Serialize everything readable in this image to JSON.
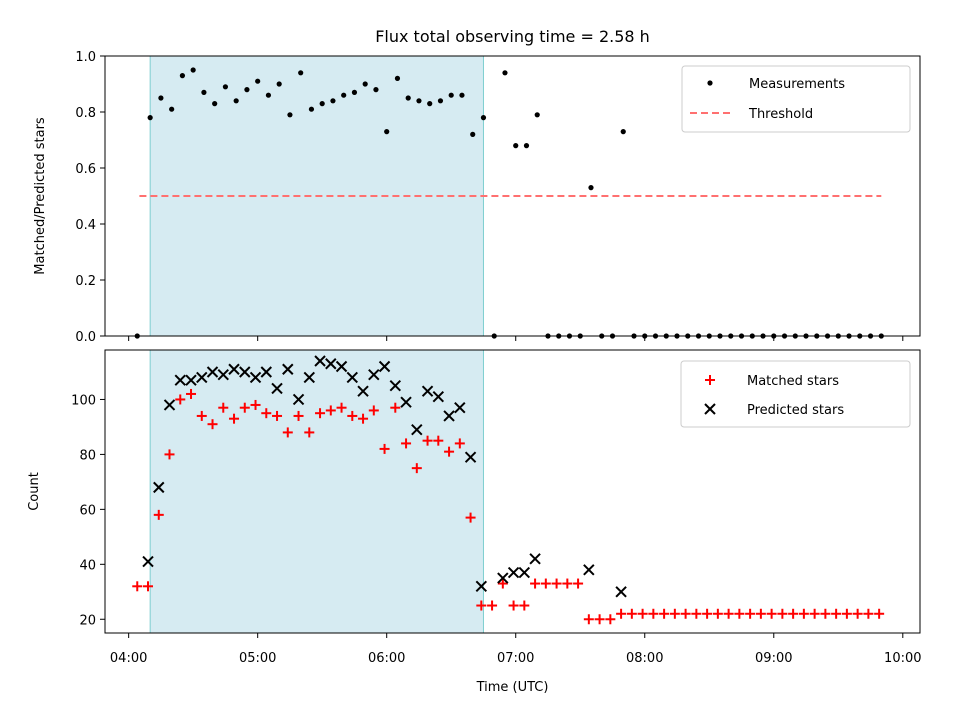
{
  "chart_data": [
    {
      "type": "scatter",
      "title": "Flux total observing time = 2.58 h",
      "xlabel": "",
      "ylabel": "Matched/Predicted stars",
      "xlim": [
        "03:49",
        "10:08"
      ],
      "ylim": [
        0,
        1
      ],
      "yticks": [
        "0.0",
        "0.2",
        "0.4",
        "0.6",
        "0.8",
        "1.0"
      ],
      "shaded_interval": [
        "04:10",
        "06:45"
      ],
      "threshold": {
        "value": 0.5,
        "from": "04:05",
        "to": "09:50",
        "color": "#ff7070"
      },
      "legend": {
        "position": "top-right",
        "entries": [
          "Measurements",
          "Threshold"
        ]
      },
      "series": [
        {
          "name": "Measurements",
          "marker": "dot",
          "color": "#000000",
          "x": [
            "04:04",
            "04:10",
            "04:15",
            "04:20",
            "04:25",
            "04:30",
            "04:35",
            "04:40",
            "04:45",
            "04:50",
            "04:55",
            "05:00",
            "05:05",
            "05:10",
            "05:15",
            "05:20",
            "05:25",
            "05:30",
            "05:35",
            "05:40",
            "05:45",
            "05:50",
            "05:55",
            "06:00",
            "06:05",
            "06:10",
            "06:15",
            "06:20",
            "06:25",
            "06:30",
            "06:35",
            "06:40",
            "06:45",
            "06:50",
            "06:55",
            "07:00",
            "07:05",
            "07:10",
            "07:15",
            "07:20",
            "07:25",
            "07:30",
            "07:35",
            "07:40",
            "07:45",
            "07:50",
            "07:55",
            "08:00",
            "08:05",
            "08:10",
            "08:15",
            "08:20",
            "08:25",
            "08:30",
            "08:35",
            "08:40",
            "08:45",
            "08:50",
            "08:55",
            "09:00",
            "09:05",
            "09:10",
            "09:15",
            "09:20",
            "09:25",
            "09:30",
            "09:35",
            "09:40",
            "09:45",
            "09:50"
          ],
          "values": [
            0.0,
            0.78,
            0.85,
            0.81,
            0.93,
            0.95,
            0.87,
            0.83,
            0.89,
            0.84,
            0.88,
            0.91,
            0.86,
            0.9,
            0.79,
            0.94,
            0.81,
            0.83,
            0.84,
            0.86,
            0.87,
            0.9,
            0.88,
            0.73,
            0.92,
            0.85,
            0.84,
            0.83,
            0.84,
            0.86,
            0.86,
            0.72,
            0.78,
            0.0,
            0.94,
            0.68,
            0.68,
            0.79,
            0.0,
            0.0,
            0.0,
            0.0,
            0.53,
            0.0,
            0.0,
            0.73,
            0.0,
            0.0,
            0.0,
            0.0,
            0.0,
            0.0,
            0.0,
            0.0,
            0.0,
            0.0,
            0.0,
            0.0,
            0.0,
            0.0,
            0.0,
            0.0,
            0.0,
            0.0,
            0.0,
            0.0,
            0.0,
            0.0,
            0.0,
            0.0
          ]
        }
      ]
    },
    {
      "type": "scatter",
      "title": "",
      "xlabel": "Time (UTC)",
      "ylabel": "Count",
      "xlim": [
        "03:49",
        "10:08"
      ],
      "ylim": [
        15,
        118
      ],
      "yticks": [
        "20",
        "40",
        "60",
        "80",
        "100"
      ],
      "xticks": [
        "04:00",
        "05:00",
        "06:00",
        "07:00",
        "08:00",
        "09:00",
        "10:00"
      ],
      "shaded_interval": [
        "04:10",
        "06:45"
      ],
      "legend": {
        "position": "top-right",
        "entries": [
          "Matched stars",
          "Predicted stars"
        ]
      },
      "series": [
        {
          "name": "Matched stars",
          "marker": "plus",
          "color": "#ff0000",
          "x": [
            "04:04",
            "04:09",
            "04:14",
            "04:19",
            "04:24",
            "04:29",
            "04:34",
            "04:39",
            "04:44",
            "04:49",
            "04:54",
            "04:59",
            "05:04",
            "05:09",
            "05:14",
            "05:19",
            "05:24",
            "05:29",
            "05:34",
            "05:39",
            "05:44",
            "05:49",
            "05:54",
            "05:59",
            "06:04",
            "06:09",
            "06:14",
            "06:19",
            "06:24",
            "06:29",
            "06:34",
            "06:39",
            "06:44",
            "06:49",
            "06:54",
            "06:59",
            "07:04",
            "07:09",
            "07:14",
            "07:19",
            "07:24",
            "07:29",
            "07:34",
            "07:39",
            "07:44",
            "07:49",
            "07:54",
            "07:59",
            "08:04",
            "08:09",
            "08:14",
            "08:19",
            "08:24",
            "08:29",
            "08:34",
            "08:39",
            "08:44",
            "08:49",
            "08:54",
            "08:59",
            "09:04",
            "09:09",
            "09:14",
            "09:19",
            "09:24",
            "09:29",
            "09:34",
            "09:39",
            "09:44",
            "09:49"
          ],
          "values": [
            32,
            32,
            58,
            80,
            100,
            102,
            94,
            91,
            97,
            93,
            97,
            98,
            95,
            94,
            88,
            94,
            88,
            95,
            96,
            97,
            94,
            93,
            96,
            82,
            97,
            84,
            75,
            85,
            85,
            81,
            84,
            57,
            25,
            25,
            33,
            25,
            25,
            33,
            33,
            33,
            33,
            33,
            20,
            20,
            20,
            22,
            22,
            22,
            22,
            22,
            22,
            22,
            22,
            22,
            22,
            22,
            22,
            22,
            22,
            22,
            22,
            22,
            22,
            22,
            22,
            22,
            22,
            22,
            22,
            22
          ]
        },
        {
          "name": "Predicted stars",
          "marker": "x",
          "color": "#000000",
          "x": [
            "04:09",
            "04:14",
            "04:19",
            "04:24",
            "04:29",
            "04:34",
            "04:39",
            "04:44",
            "04:49",
            "04:54",
            "04:59",
            "05:04",
            "05:09",
            "05:14",
            "05:19",
            "05:24",
            "05:29",
            "05:34",
            "05:39",
            "05:44",
            "05:49",
            "05:54",
            "05:59",
            "06:04",
            "06:09",
            "06:14",
            "06:19",
            "06:24",
            "06:29",
            "06:34",
            "06:39",
            "06:44",
            "06:54",
            "06:59",
            "07:04",
            "07:09",
            "07:34",
            "07:49"
          ],
          "values": [
            41,
            68,
            98,
            107,
            107,
            108,
            110,
            109,
            111,
            110,
            108,
            110,
            104,
            111,
            100,
            108,
            114,
            113,
            112,
            108,
            103,
            109,
            112,
            105,
            99,
            89,
            103,
            101,
            94,
            97,
            79,
            32,
            35,
            37,
            37,
            42,
            38,
            30
          ]
        }
      ]
    }
  ]
}
